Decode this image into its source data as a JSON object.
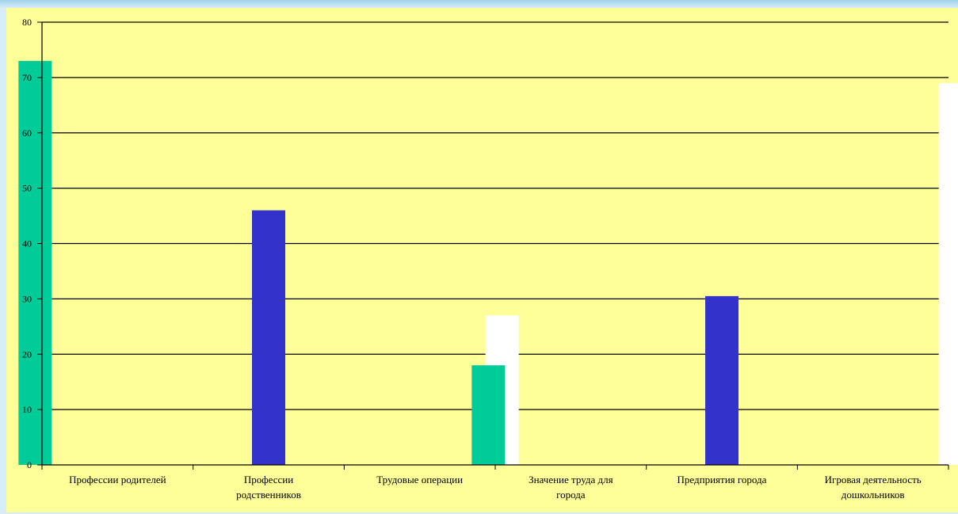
{
  "chart_data": {
    "type": "bar",
    "categories": [
      [
        "Профессии родителей"
      ],
      [
        "Профессии",
        "родственников"
      ],
      [
        "Трудовые операции"
      ],
      [
        "Значение труда для",
        "города"
      ],
      [
        "Предприятия города"
      ],
      [
        "Игровая деятельность",
        "дошкольников"
      ]
    ],
    "series": [
      {
        "values": [
          73,
          0,
          0,
          18,
          0,
          0
        ],
        "color": "#00cc99"
      },
      {
        "values": [
          0,
          46,
          0,
          0,
          30.5,
          0
        ],
        "color": "#3333cc"
      },
      {
        "values": [
          0,
          0,
          27,
          0,
          0,
          69
        ],
        "color": "#ffffff"
      }
    ],
    "y_ticks": [
      "0",
      "10",
      "20",
      "30",
      "40",
      "50",
      "60",
      "70",
      "80"
    ],
    "ylim": [
      0,
      80
    ],
    "grid": true,
    "plot_background": "#ffff99"
  }
}
